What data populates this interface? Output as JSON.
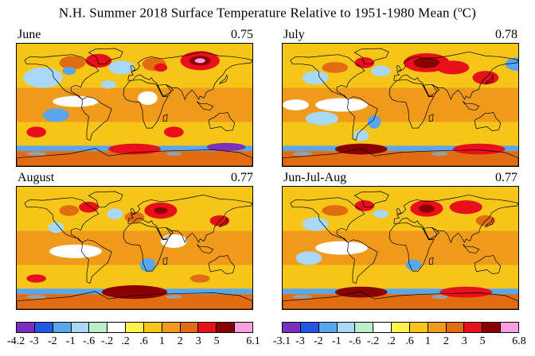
{
  "title_main": "N.H. Summer 2018 Surface Temperature Relative to 1951-1980 Mean (",
  "title_unit": "o",
  "title_tail": "C)",
  "panels": [
    {
      "label": "June",
      "value": "0.75"
    },
    {
      "label": "July",
      "value": "0.78"
    },
    {
      "label": "August",
      "value": "0.77"
    },
    {
      "label": "Jun-Jul-Aug",
      "value": "0.77"
    }
  ],
  "colorbar_colors": [
    "#7b2fbe",
    "#2257e6",
    "#5aa6ec",
    "#a9d8f6",
    "#b8f0c8",
    "#ffffff",
    "#fff24a",
    "#f5c518",
    "#ef9a1a",
    "#e26c12",
    "#e8101a",
    "#8a0000",
    "#f7a0e0"
  ],
  "colorbar_left": {
    "ticks": [
      "-4.2",
      "-3",
      "-2",
      "-1",
      "-.6",
      "-.2",
      ".2",
      ".6",
      "1",
      "2",
      "3",
      "5",
      "6.1"
    ]
  },
  "colorbar_right": {
    "ticks": [
      "-3.1",
      "-3",
      "-2",
      "-1",
      "-.6",
      "-.2",
      ".2",
      ".6",
      "1",
      "2",
      "3",
      "5",
      "6.8"
    ]
  }
}
